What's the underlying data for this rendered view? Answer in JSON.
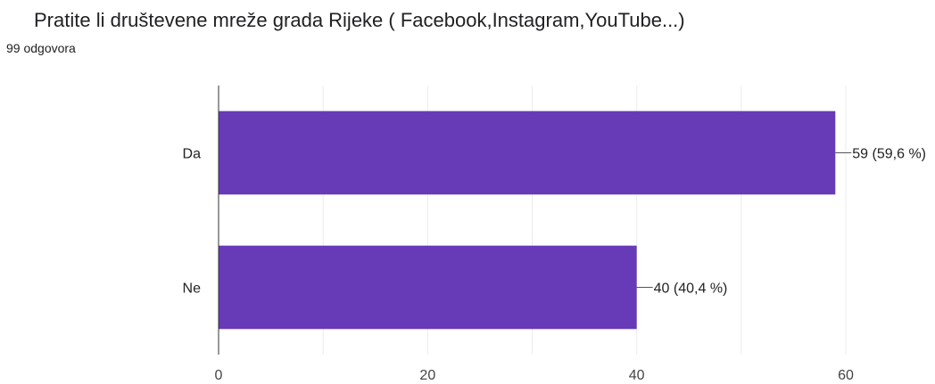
{
  "question": {
    "title": "Pratite li društevene mreže grada Rijeke ( Facebook,Instagram,YouTube...)",
    "response_count": "99 odgovora"
  },
  "chart_data": {
    "type": "bar",
    "orientation": "horizontal",
    "categories": [
      "Da",
      "Ne"
    ],
    "values": [
      59,
      40
    ],
    "data_labels": [
      "59 (59,6 %)",
      "40 (40,4 %)"
    ],
    "xlim": [
      0,
      60
    ],
    "x_ticks": [
      0,
      20,
      40,
      60
    ],
    "grid": true,
    "bar_color": "#673ab7"
  }
}
